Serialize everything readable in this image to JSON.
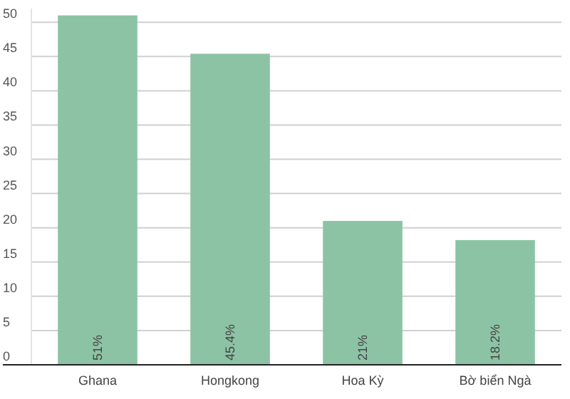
{
  "chart_data": {
    "type": "bar",
    "categories": [
      "Ghana",
      "Hongkong",
      "Hoa Kỳ",
      "Bờ biển Ngà"
    ],
    "values": [
      51,
      45.4,
      21,
      18.2
    ],
    "value_labels": [
      "51%",
      "45.4%",
      "21%",
      "18.2%"
    ],
    "color": "#8cc3a5",
    "ylim": [
      0,
      52
    ],
    "yticks": [
      0,
      5,
      10,
      15,
      20,
      25,
      30,
      35,
      40,
      45,
      50
    ],
    "grid": "y"
  }
}
